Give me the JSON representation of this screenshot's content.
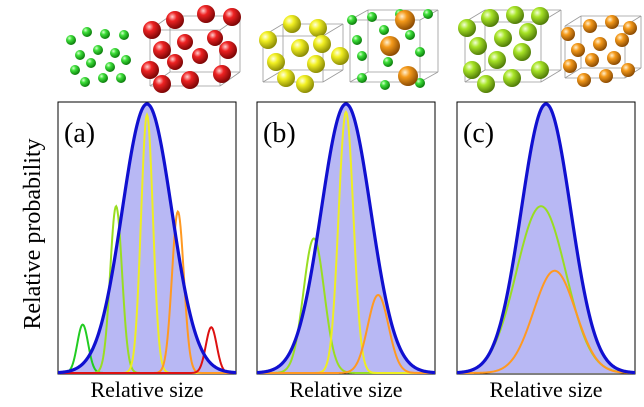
{
  "figure": {
    "ylabel": "Relative probability",
    "xlabel": "Relative size"
  },
  "chart_data": [
    {
      "type": "line",
      "panel_label": "(a)",
      "xlabel": "Relative size",
      "ylabel": "Relative probability",
      "xlim": [
        -3.6,
        3.6
      ],
      "ylim": [
        0,
        1.0
      ],
      "envelope": {
        "color": "#1010d0",
        "fill": "#b8b8f4",
        "mu": 0.0,
        "sigma": 1.0,
        "height": 1.0
      },
      "series": [
        {
          "color": "#22cc22",
          "mu": -2.6,
          "sigma": 0.22,
          "height": 0.18
        },
        {
          "color": "#99dd22",
          "mu": -1.25,
          "sigma": 0.24,
          "height": 0.62
        },
        {
          "color": "#eeee22",
          "mu": 0.0,
          "sigma": 0.24,
          "height": 0.96
        },
        {
          "color": "#ff9922",
          "mu": 1.25,
          "sigma": 0.24,
          "height": 0.6
        },
        {
          "color": "#dd1111",
          "mu": 2.6,
          "sigma": 0.22,
          "height": 0.17
        }
      ]
    },
    {
      "type": "line",
      "panel_label": "(b)",
      "xlabel": "Relative size",
      "ylabel": "Relative probability",
      "xlim": [
        -3.6,
        3.6
      ],
      "ylim": [
        0,
        1.0
      ],
      "envelope": {
        "color": "#1010d0",
        "fill": "#b8b8f4",
        "mu": 0.0,
        "sigma": 1.0,
        "height": 1.0
      },
      "series": [
        {
          "color": "#99dd22",
          "mu": -1.3,
          "sigma": 0.42,
          "height": 0.5
        },
        {
          "color": "#eeee22",
          "mu": 0.0,
          "sigma": 0.3,
          "height": 0.97
        },
        {
          "color": "#ff9922",
          "mu": 1.3,
          "sigma": 0.42,
          "height": 0.29
        }
      ]
    },
    {
      "type": "line",
      "panel_label": "(c)",
      "xlabel": "Relative size",
      "ylabel": "Relative probability",
      "xlim": [
        -3.6,
        3.6
      ],
      "ylim": [
        0,
        1.0
      ],
      "envelope": {
        "color": "#1010d0",
        "fill": "#b8b8f4",
        "mu": 0.0,
        "sigma": 1.0,
        "height": 1.0
      },
      "series": [
        {
          "color": "#99dd22",
          "mu": -0.2,
          "sigma": 1.0,
          "height": 0.62
        },
        {
          "color": "#ff9922",
          "mu": 0.35,
          "sigma": 0.85,
          "height": 0.38
        }
      ]
    }
  ],
  "crystals": [
    {
      "panel": "(a)",
      "left_colors": [
        "#22cc22"
      ],
      "right_colors": [
        "#dd1111"
      ]
    },
    {
      "panel": "(b)",
      "left_colors": [
        "#eeee22"
      ],
      "right_colors": [
        "#22cc22",
        "#ff9922"
      ]
    },
    {
      "panel": "(c)",
      "left_colors": [
        "#99dd22"
      ],
      "right_colors": [
        "#ff9922"
      ]
    }
  ]
}
